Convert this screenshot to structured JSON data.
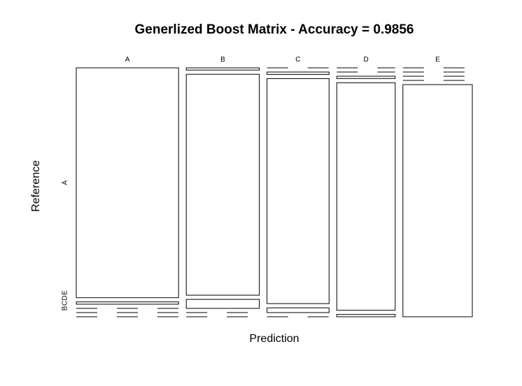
{
  "chart_data": {
    "type": "mosaic",
    "title": "Generlized Boost Matrix - Accuracy = 0.9856",
    "xlabel": "Prediction",
    "ylabel": "Reference",
    "prediction_levels": [
      "A",
      "B",
      "C",
      "D",
      "E"
    ],
    "reference_levels": [
      "A",
      "B",
      "C",
      "D",
      "E"
    ],
    "reference_tick_labels": [
      "A",
      "B",
      "C",
      "D",
      "E"
    ],
    "column_proportions": [
      0.28,
      0.2,
      0.17,
      0.16,
      0.19
    ],
    "matrix_proportions": [
      [
        0.99,
        0.01,
        0.0,
        0.0,
        0.0
      ],
      [
        0.01,
        0.98,
        0.01,
        0.0,
        0.0
      ],
      [
        0.0,
        0.04,
        0.95,
        0.01,
        0.0
      ],
      [
        0.0,
        0.0,
        0.02,
        0.98,
        0.0
      ],
      [
        0.0,
        0.0,
        0.0,
        0.01,
        0.99
      ]
    ],
    "grid": false,
    "legend": "none"
  }
}
